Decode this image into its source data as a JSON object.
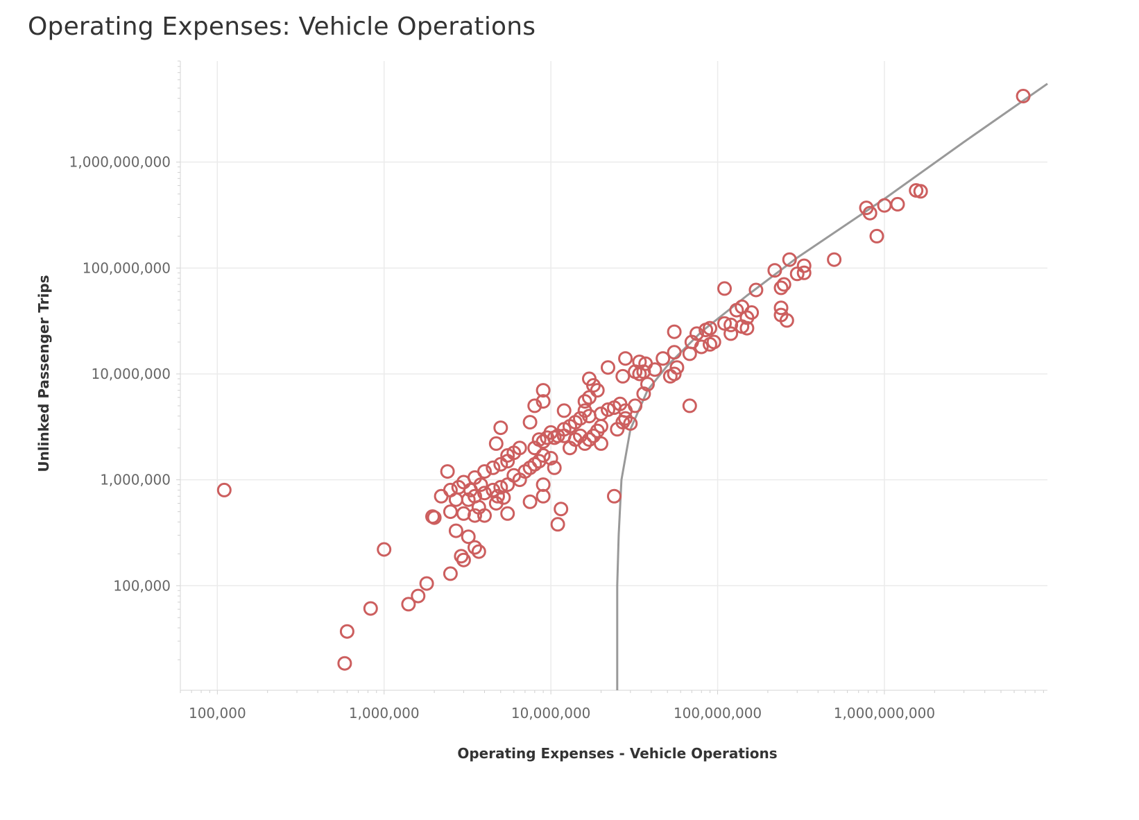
{
  "title": "Operating Expenses: Vehicle Operations",
  "chart_data": {
    "type": "scatter",
    "title": "Operating Expenses: Vehicle Operations",
    "xlabel": "Operating Expenses - Vehicle Operations",
    "ylabel": "Unlinked Passenger Trips",
    "xscale": "log",
    "yscale": "log",
    "xlim": [
      60000,
      9500000000
    ],
    "ylim": [
      10300,
      9000000000
    ],
    "grid": true,
    "legend": "none",
    "x_ticks": [
      {
        "value": 100000,
        "label": "100,000"
      },
      {
        "value": 1000000,
        "label": "1,000,000"
      },
      {
        "value": 10000000,
        "label": "10,000,000"
      },
      {
        "value": 100000000,
        "label": "100,000,000"
      },
      {
        "value": 1000000000,
        "label": "1,000,000,000"
      }
    ],
    "y_ticks": [
      {
        "value": 100000,
        "label": "100,000"
      },
      {
        "value": 1000000,
        "label": "1,000,000"
      },
      {
        "value": 10000000,
        "label": "10,000,000"
      },
      {
        "value": 100000000,
        "label": "100,000,000"
      },
      {
        "value": 1000000000,
        "label": "1,000,000,000"
      }
    ],
    "colors": {
      "points": "#cc5e5e",
      "trend": "#999999",
      "grid": "#ebebeb"
    },
    "points": [
      [
        6800000000,
        4200000000
      ],
      [
        1550000000,
        540000000
      ],
      [
        1650000000,
        530000000
      ],
      [
        780000000,
        370000000
      ],
      [
        820000000,
        330000000
      ],
      [
        1000000000,
        390000000
      ],
      [
        1200000000,
        400000000
      ],
      [
        900000000,
        200000000
      ],
      [
        500000000,
        120000000
      ],
      [
        330000000,
        105000000
      ],
      [
        330000000,
        90000000
      ],
      [
        300000000,
        88000000
      ],
      [
        270000000,
        120000000
      ],
      [
        220000000,
        95000000
      ],
      [
        250000000,
        70000000
      ],
      [
        240000000,
        65000000
      ],
      [
        170000000,
        62000000
      ],
      [
        110000000,
        64000000
      ],
      [
        240000000,
        42000000
      ],
      [
        240000000,
        36000000
      ],
      [
        260000000,
        32000000
      ],
      [
        160000000,
        38000000
      ],
      [
        140000000,
        43000000
      ],
      [
        130000000,
        40000000
      ],
      [
        150000000,
        34000000
      ],
      [
        140000000,
        28000000
      ],
      [
        150000000,
        27000000
      ],
      [
        110000000,
        30000000
      ],
      [
        120000000,
        29000000
      ],
      [
        120000000,
        24000000
      ],
      [
        90000000,
        27000000
      ],
      [
        85000000,
        26000000
      ],
      [
        95000000,
        20000000
      ],
      [
        90000000,
        19000000
      ],
      [
        75000000,
        24000000
      ],
      [
        70000000,
        20000000
      ],
      [
        80000000,
        18000000
      ],
      [
        68000000,
        15500000
      ],
      [
        55000000,
        25000000
      ],
      [
        55000000,
        16000000
      ],
      [
        47000000,
        14000000
      ],
      [
        42000000,
        11000000
      ],
      [
        57000000,
        11500000
      ],
      [
        55000000,
        10000000
      ],
      [
        52000000,
        9500000
      ],
      [
        37000000,
        12500000
      ],
      [
        34000000,
        13000000
      ],
      [
        36000000,
        10500000
      ],
      [
        34000000,
        10000000
      ],
      [
        32000000,
        10500000
      ],
      [
        28000000,
        14000000
      ],
      [
        27000000,
        9500000
      ],
      [
        22000000,
        11500000
      ],
      [
        38000000,
        8000000
      ],
      [
        36000000,
        6500000
      ],
      [
        32000000,
        5000000
      ],
      [
        68000000,
        5000000
      ],
      [
        28000000,
        4500000
      ],
      [
        26000000,
        5200000
      ],
      [
        24000000,
        4800000
      ],
      [
        22000000,
        4600000
      ],
      [
        20000000,
        4200000
      ],
      [
        19000000,
        7000000
      ],
      [
        18000000,
        7800000
      ],
      [
        17000000,
        9000000
      ],
      [
        17000000,
        6000000
      ],
      [
        16000000,
        5500000
      ],
      [
        16000000,
        4500000
      ],
      [
        17000000,
        4000000
      ],
      [
        15000000,
        3800000
      ],
      [
        14000000,
        3500000
      ],
      [
        13000000,
        3200000
      ],
      [
        12000000,
        4500000
      ],
      [
        12000000,
        3000000
      ],
      [
        11000000,
        2600000
      ],
      [
        10500000,
        2500000
      ],
      [
        10000000,
        2800000
      ],
      [
        28000000,
        3800000
      ],
      [
        27000000,
        3500000
      ],
      [
        30000000,
        3400000
      ],
      [
        25000000,
        3000000
      ],
      [
        20000000,
        3200000
      ],
      [
        19000000,
        2900000
      ],
      [
        18000000,
        2600000
      ],
      [
        17000000,
        2400000
      ],
      [
        16000000,
        2200000
      ],
      [
        20000000,
        2200000
      ],
      [
        15000000,
        2600000
      ],
      [
        14000000,
        2400000
      ],
      [
        13000000,
        2000000
      ],
      [
        12000000,
        2600000
      ],
      [
        9000000,
        7000000
      ],
      [
        9000000,
        5500000
      ],
      [
        8000000,
        5000000
      ],
      [
        7500000,
        3500000
      ],
      [
        9500000,
        2500000
      ],
      [
        9000000,
        2300000
      ],
      [
        8500000,
        2400000
      ],
      [
        8000000,
        2000000
      ],
      [
        9000000,
        1700000
      ],
      [
        10000000,
        1600000
      ],
      [
        8500000,
        1500000
      ],
      [
        8000000,
        1400000
      ],
      [
        7500000,
        1300000
      ],
      [
        7000000,
        1200000
      ],
      [
        10500000,
        1300000
      ],
      [
        6500000,
        2000000
      ],
      [
        6000000,
        1800000
      ],
      [
        5500000,
        1700000
      ],
      [
        5000000,
        3100000
      ],
      [
        4700000,
        2200000
      ],
      [
        5500000,
        1500000
      ],
      [
        5000000,
        1400000
      ],
      [
        4500000,
        1300000
      ],
      [
        4000000,
        1200000
      ],
      [
        3500000,
        1050000
      ],
      [
        3000000,
        950000
      ],
      [
        2800000,
        850000
      ],
      [
        2500000,
        800000
      ],
      [
        2200000,
        700000
      ],
      [
        2400000,
        1200000
      ],
      [
        6000000,
        1100000
      ],
      [
        6500000,
        1000000
      ],
      [
        5500000,
        900000
      ],
      [
        5000000,
        850000
      ],
      [
        4500000,
        800000
      ],
      [
        4000000,
        750000
      ],
      [
        3500000,
        700000
      ],
      [
        3200000,
        650000
      ],
      [
        2700000,
        650000
      ],
      [
        2500000,
        500000
      ],
      [
        3000000,
        480000
      ],
      [
        3500000,
        460000
      ],
      [
        4000000,
        460000
      ],
      [
        3700000,
        550000
      ],
      [
        4700000,
        600000
      ],
      [
        5200000,
        680000
      ],
      [
        5500000,
        480000
      ],
      [
        4800000,
        700000
      ],
      [
        3300000,
        800000
      ],
      [
        3800000,
        900000
      ],
      [
        9000000,
        900000
      ],
      [
        9000000,
        700000
      ],
      [
        7500000,
        620000
      ],
      [
        11500000,
        530000
      ],
      [
        11000000,
        380000
      ],
      [
        24000000,
        700000
      ],
      [
        1950000,
        450000
      ],
      [
        2000000,
        440000
      ],
      [
        2700000,
        330000
      ],
      [
        3200000,
        290000
      ],
      [
        3500000,
        230000
      ],
      [
        3700000,
        210000
      ],
      [
        2900000,
        190000
      ],
      [
        3000000,
        175000
      ],
      [
        1000000,
        220000
      ],
      [
        2500000,
        130000
      ],
      [
        1800000,
        105000
      ],
      [
        1600000,
        80000
      ],
      [
        1400000,
        67000
      ],
      [
        830000,
        61000
      ],
      [
        600000,
        37000
      ],
      [
        580000,
        18500
      ],
      [
        110000,
        800000
      ]
    ],
    "trend": [
      [
        25000000,
        10300
      ],
      [
        25000000,
        100000
      ],
      [
        25500000,
        300000
      ],
      [
        26500000,
        1000000
      ],
      [
        30000000,
        3000000
      ],
      [
        38000000,
        7000000
      ],
      [
        50000000,
        12000000
      ],
      [
        80000000,
        25000000
      ],
      [
        150000000,
        55000000
      ],
      [
        300000000,
        125000000
      ],
      [
        1000000000,
        450000000
      ],
      [
        3000000000,
        1550000000
      ],
      [
        9500000000,
        5500000000
      ]
    ]
  }
}
